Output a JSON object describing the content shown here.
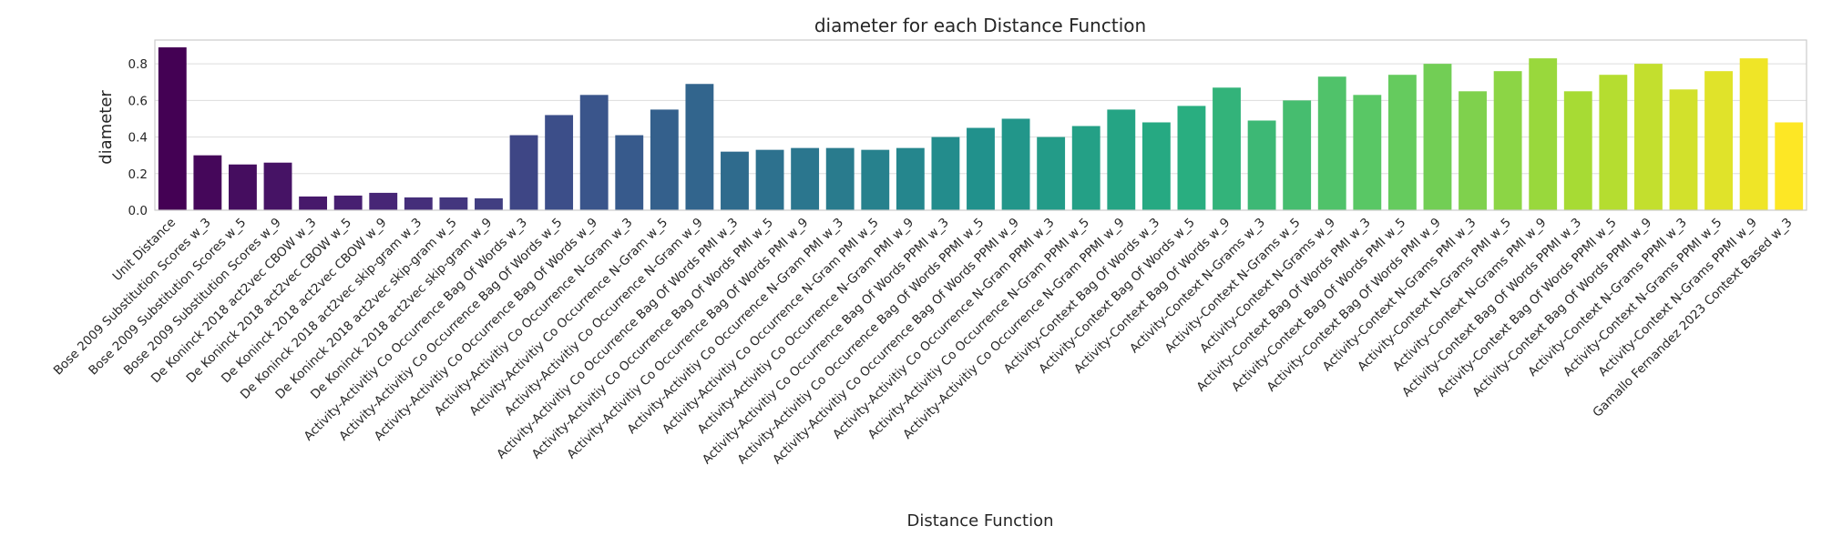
{
  "chart_data": {
    "type": "bar",
    "title": "diameter for each Distance Function",
    "xlabel": "Distance Function",
    "ylabel": "diameter",
    "ylim": [
      0,
      0.93
    ],
    "yticks": [
      "0.0",
      "0.2",
      "0.4",
      "0.6",
      "0.8"
    ],
    "grid": "horizontal",
    "palette": "viridis",
    "categories": [
      "Unit Distance",
      "Bose 2009 Substitution Scores w_3",
      "Bose 2009 Substitution Scores w_5",
      "Bose 2009 Substitution Scores w_9",
      "De Koninck 2018 act2vec CBOW w_3",
      "De Koninck 2018 act2vec CBOW w_5",
      "De Koninck 2018 act2vec CBOW w_9",
      "De Koninck 2018 act2vec skip-gram w_3",
      "De Koninck 2018 act2vec skip-gram w_5",
      "De Koninck 2018 act2vec skip-gram w_9",
      "Activity-Activitiy Co Occurrence Bag Of Words w_3",
      "Activity-Activitiy Co Occurrence Bag Of Words w_5",
      "Activity-Activitiy Co Occurrence Bag Of Words w_9",
      "Activity-Activitiy Co Occurrence N-Gram w_3",
      "Activity-Activitiy Co Occurrence N-Gram w_5",
      "Activity-Activitiy Co Occurrence N-Gram w_9",
      "Activity-Activitiy Co Occurrence Bag Of Words PMI w_3",
      "Activity-Activitiy Co Occurrence Bag Of Words PMI w_5",
      "Activity-Activitiy Co Occurrence Bag Of Words PMI w_9",
      "Activity-Activitiy Co Occurrence N-Gram PMI w_3",
      "Activity-Activitiy Co Occurrence N-Gram PMI w_5",
      "Activity-Activitiy Co Occurrence N-Gram PMI w_9",
      "Activity-Activitiy Co Occurrence Bag Of Words PPMI w_3",
      "Activity-Activitiy Co Occurrence Bag Of Words PPMI w_5",
      "Activity-Activitiy Co Occurrence Bag Of Words PPMI w_9",
      "Activity-Activitiy Co Occurrence N-Gram PPMI w_3",
      "Activity-Activitiy Co Occurrence N-Gram PPMI w_5",
      "Activity-Activitiy Co Occurrence N-Gram PPMI w_9",
      "Activity-Context Bag Of Words w_3",
      "Activity-Context Bag Of Words w_5",
      "Activity-Context Bag Of Words w_9",
      "Activity-Context N-Grams w_3",
      "Activity-Context N-Grams w_5",
      "Activity-Context N-Grams w_9",
      "Activity-Context Bag Of Words PMI w_3",
      "Activity-Context Bag Of Words PMI w_5",
      "Activity-Context Bag Of Words PMI w_9",
      "Activity-Context N-Grams PMI w_3",
      "Activity-Context N-Grams PMI w_5",
      "Activity-Context N-Grams PMI w_9",
      "Activity-Context Bag Of Words PPMI w_3",
      "Activity-Context Bag Of Words PPMI w_5",
      "Activity-Context Bag Of Words PPMI w_9",
      "Activity-Context N-Grams PPMI w_3",
      "Activity-Context N-Grams PPMI w_5",
      "Activity-Context N-Grams PPMI w_9",
      "Gamallo Fernandez 2023 Context Based w_3"
    ],
    "values": [
      0.89,
      0.3,
      0.25,
      0.26,
      0.075,
      0.08,
      0.095,
      0.07,
      0.07,
      0.065,
      0.41,
      0.52,
      0.63,
      0.41,
      0.55,
      0.69,
      0.32,
      0.33,
      0.34,
      0.34,
      0.33,
      0.34,
      0.4,
      0.45,
      0.5,
      0.4,
      0.46,
      0.55,
      0.48,
      0.57,
      0.67,
      0.49,
      0.6,
      0.73,
      0.63,
      0.74,
      0.8,
      0.65,
      0.76,
      0.83,
      0.65,
      0.74,
      0.8,
      0.66,
      0.76,
      0.83,
      0.48
    ]
  }
}
